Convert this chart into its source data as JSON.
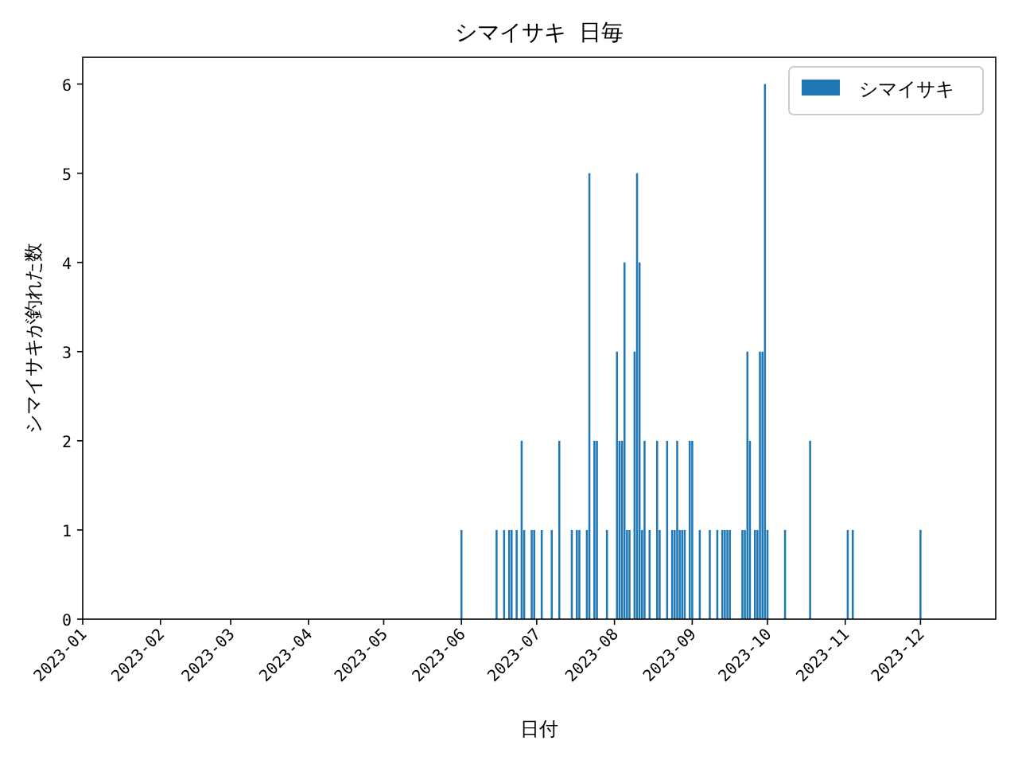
{
  "chart_data": {
    "type": "bar",
    "title": "シマイサキ 日毎",
    "xlabel": "日付",
    "ylabel": "シマイサキが釣れた数",
    "x": [
      "2023-06-01",
      "2023-06-15",
      "2023-06-18",
      "2023-06-20",
      "2023-06-21",
      "2023-06-23",
      "2023-06-25",
      "2023-06-26",
      "2023-06-29",
      "2023-06-30",
      "2023-07-03",
      "2023-07-07",
      "2023-07-10",
      "2023-07-15",
      "2023-07-17",
      "2023-07-18",
      "2023-07-21",
      "2023-07-22",
      "2023-07-24",
      "2023-07-25",
      "2023-07-29",
      "2023-08-02",
      "2023-08-03",
      "2023-08-04",
      "2023-08-05",
      "2023-08-06",
      "2023-08-07",
      "2023-08-09",
      "2023-08-10",
      "2023-08-11",
      "2023-08-12",
      "2023-08-13",
      "2023-08-15",
      "2023-08-18",
      "2023-08-19",
      "2023-08-22",
      "2023-08-24",
      "2023-08-25",
      "2023-08-26",
      "2023-08-27",
      "2023-08-28",
      "2023-08-29",
      "2023-08-31",
      "2023-09-01",
      "2023-09-04",
      "2023-09-08",
      "2023-09-11",
      "2023-09-13",
      "2023-09-14",
      "2023-09-15",
      "2023-09-16",
      "2023-09-21",
      "2023-09-22",
      "2023-09-23",
      "2023-09-24",
      "2023-09-26",
      "2023-09-27",
      "2023-09-28",
      "2023-09-29",
      "2023-09-30",
      "2023-10-01",
      "2023-10-08",
      "2023-10-18",
      "2023-11-02",
      "2023-11-04",
      "2023-12-01"
    ],
    "series": [
      {
        "name": "シマイサキ",
        "color": "#1f77b4",
        "values": [
          1,
          1,
          1,
          1,
          1,
          1,
          2,
          1,
          1,
          1,
          1,
          1,
          2,
          1,
          1,
          1,
          1,
          5,
          2,
          2,
          1,
          3,
          2,
          2,
          4,
          1,
          1,
          3,
          5,
          4,
          1,
          2,
          1,
          2,
          1,
          2,
          1,
          1,
          2,
          1,
          1,
          1,
          2,
          2,
          1,
          1,
          1,
          1,
          1,
          1,
          1,
          1,
          1,
          3,
          2,
          1,
          1,
          3,
          3,
          6,
          1,
          1,
          2,
          1,
          1,
          1
        ]
      }
    ],
    "xlim": [
      "2023-01-01",
      "2023-12-31"
    ],
    "xticks": [
      "2023-01",
      "2023-02",
      "2023-03",
      "2023-04",
      "2023-05",
      "2023-06",
      "2023-07",
      "2023-08",
      "2023-09",
      "2023-10",
      "2023-11",
      "2023-12"
    ],
    "ylim": [
      0,
      6.3
    ],
    "yticks": [
      0,
      1,
      2,
      3,
      4,
      5,
      6
    ],
    "legend": "top right",
    "grid": false
  }
}
